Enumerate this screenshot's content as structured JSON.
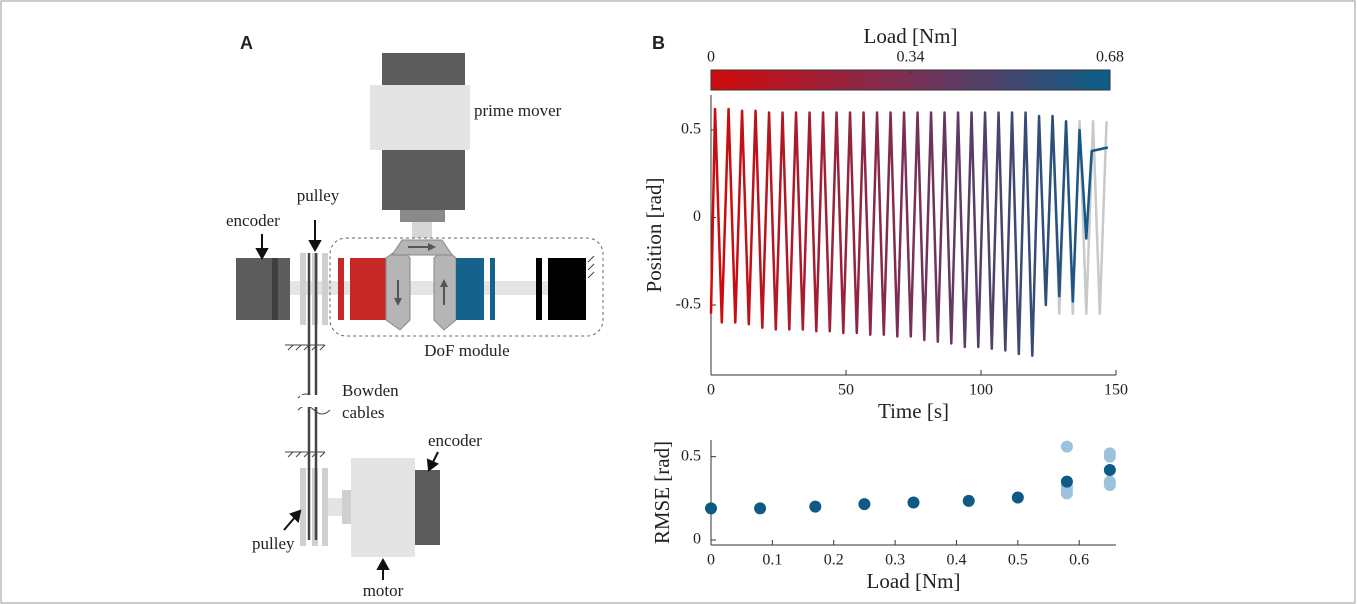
{
  "panels": [
    "A",
    "B"
  ],
  "diagram": {
    "labels": [
      "prime mover",
      "encoder",
      "pulley",
      "DoF module",
      "Bowden",
      "cables",
      "encoder",
      "pulley",
      "motor"
    ]
  },
  "chart_data": [
    {
      "type": "line",
      "xlabel": "Time [s]",
      "ylabel": "Position [rad]",
      "xlim": [
        0,
        150
      ],
      "xticks": [
        0,
        50,
        100,
        150
      ],
      "ylim": [
        -0.9,
        0.7
      ],
      "yticks": [
        -0.5,
        0,
        0.5
      ],
      "colorbar": {
        "label": "Load [Nm]",
        "lim": [
          0,
          0.68
        ],
        "ticks": [
          0,
          0.34,
          0.68
        ],
        "colors": [
          "#d00a0a",
          "#7a2f55",
          "#0b5d8a"
        ]
      },
      "series": [
        {
          "color": "#c9c9c9",
          "x": [
            124,
            126.5,
            129,
            131.5,
            134,
            136.5,
            139,
            141.5,
            144,
            146.5
          ],
          "values": [
            -0.5,
            0.58,
            -0.55,
            0.55,
            -0.55,
            0.55,
            -0.55,
            0.55,
            -0.55,
            0.55
          ]
        },
        {
          "x": [
            0,
            1.5,
            4,
            6.5,
            9,
            11.5,
            14,
            16.5,
            19,
            21.5,
            24,
            26.5,
            29,
            31.5,
            34,
            36.5,
            39,
            41.5,
            44,
            46.5,
            49,
            51.5,
            54,
            56.5,
            59,
            61.5,
            64,
            66.5,
            69,
            71.5,
            74,
            76.5,
            79,
            81.5,
            84,
            86.5,
            89,
            91.5,
            94,
            96.5,
            99,
            101.5,
            104,
            106.5,
            109,
            111.5,
            114,
            116.5,
            119,
            121.5,
            124,
            126.5,
            129,
            131.5,
            134,
            136.5,
            139,
            141,
            147
          ],
          "values": [
            -0.55,
            0.62,
            -0.6,
            0.62,
            -0.6,
            0.61,
            -0.61,
            0.61,
            -0.63,
            0.6,
            -0.64,
            0.6,
            -0.64,
            0.6,
            -0.64,
            0.6,
            -0.65,
            0.6,
            -0.65,
            0.6,
            -0.66,
            0.6,
            -0.66,
            0.6,
            -0.67,
            0.6,
            -0.67,
            0.6,
            -0.68,
            0.6,
            -0.68,
            0.6,
            -0.7,
            0.6,
            -0.71,
            0.6,
            -0.72,
            0.6,
            -0.74,
            0.6,
            -0.74,
            0.6,
            -0.75,
            0.6,
            -0.76,
            0.6,
            -0.78,
            0.6,
            -0.79,
            0.58,
            -0.5,
            0.58,
            -0.45,
            0.55,
            -0.48,
            0.5,
            -0.12,
            0.38,
            0.4
          ]
        }
      ]
    },
    {
      "type": "scatter",
      "xlabel": "Load [Nm]",
      "ylabel": "RMSE [rad]",
      "xlim": [
        0,
        0.66
      ],
      "xticks": [
        0,
        0.1,
        0.2,
        0.3,
        0.4,
        0.5,
        0.6
      ],
      "ylim": [
        -0.03,
        0.6
      ],
      "yticks": [
        0,
        0.5
      ],
      "series": [
        {
          "color": "#9cc2dc",
          "x": [
            0.58,
            0.58,
            0.58,
            0.58,
            0.65,
            0.65,
            0.65,
            0.65
          ],
          "values": [
            0.56,
            0.3,
            0.28,
            0.32,
            0.52,
            0.5,
            0.35,
            0.33
          ]
        },
        {
          "color": "#0e5a85",
          "x": [
            0,
            0.08,
            0.17,
            0.25,
            0.33,
            0.42,
            0.5,
            0.58,
            0.65
          ],
          "values": [
            0.19,
            0.19,
            0.2,
            0.215,
            0.225,
            0.235,
            0.255,
            0.35,
            0.42
          ]
        }
      ]
    }
  ]
}
